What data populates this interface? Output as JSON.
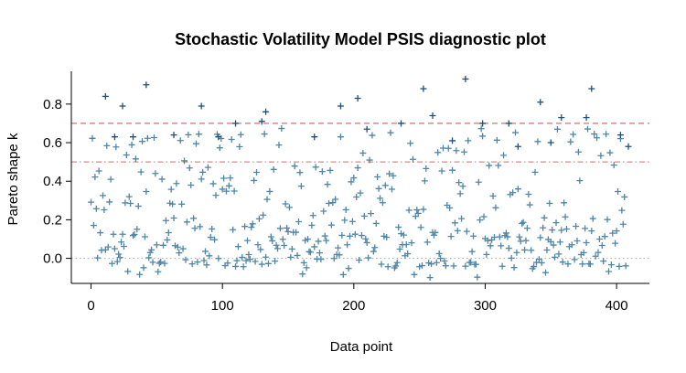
{
  "chart_data": {
    "type": "scatter",
    "title": "Stochastic Volatility Model PSIS diagnostic plot",
    "xlabel": "Data point",
    "ylabel": "Pareto shape k",
    "xlim": [
      -15,
      425
    ],
    "ylim": [
      -0.13,
      0.97
    ],
    "x_ticks": [
      0,
      100,
      200,
      300,
      400
    ],
    "y_ticks": [
      0.0,
      0.2,
      0.4,
      0.6,
      0.8
    ],
    "x_tick_labels": [
      "0",
      "100",
      "200",
      "300",
      "400"
    ],
    "y_tick_labels": [
      "0.0",
      "0.2",
      "0.4",
      "0.6",
      "0.8"
    ],
    "grid": false,
    "reference_lines": [
      {
        "y": 0.0,
        "style": "dotted",
        "color": "#b0b0b0"
      },
      {
        "y": 0.5,
        "style": "dashdot",
        "color": "#d98a8a"
      },
      {
        "y": 0.7,
        "style": "dashed",
        "color": "#d06060"
      }
    ],
    "marker": "+",
    "colors": {
      "point": "#4f86a8",
      "point_high": "#1f4f7a"
    },
    "n_points": 408,
    "highlighted_points": [
      {
        "x": 11,
        "y": 0.84
      },
      {
        "x": 24,
        "y": 0.79
      },
      {
        "x": 42,
        "y": 0.9
      },
      {
        "x": 84,
        "y": 0.79
      },
      {
        "x": 133,
        "y": 0.76
      },
      {
        "x": 130,
        "y": 0.71
      },
      {
        "x": 190,
        "y": 0.79
      },
      {
        "x": 203,
        "y": 0.83
      },
      {
        "x": 253,
        "y": 0.88
      },
      {
        "x": 285,
        "y": 0.93
      },
      {
        "x": 342,
        "y": 0.81
      },
      {
        "x": 381,
        "y": 0.88
      },
      {
        "x": 260,
        "y": 0.74
      },
      {
        "x": 358,
        "y": 0.73
      },
      {
        "x": 377,
        "y": 0.73
      },
      {
        "x": 110,
        "y": 0.7
      },
      {
        "x": 236,
        "y": 0.7
      },
      {
        "x": 298,
        "y": 0.7
      },
      {
        "x": 18,
        "y": 0.63
      },
      {
        "x": 32,
        "y": 0.63
      },
      {
        "x": 63,
        "y": 0.64
      },
      {
        "x": 97,
        "y": 0.63
      },
      {
        "x": 170,
        "y": 0.63
      },
      {
        "x": 210,
        "y": 0.67
      },
      {
        "x": 275,
        "y": 0.61
      },
      {
        "x": 318,
        "y": 0.7
      },
      {
        "x": 325,
        "y": 0.58
      },
      {
        "x": 350,
        "y": 0.6
      },
      {
        "x": 403,
        "y": 0.64
      },
      {
        "x": 409,
        "y": 0.58
      }
    ]
  }
}
